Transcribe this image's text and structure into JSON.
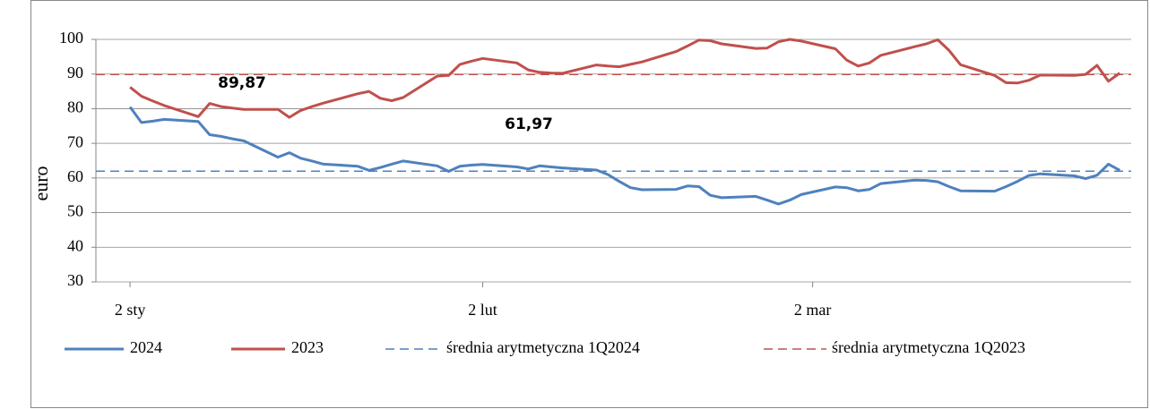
{
  "chart_data": {
    "type": "line",
    "y_label": "euro",
    "xlim": [
      -3,
      88
    ],
    "xticks": [
      {
        "value": 0,
        "label": "2 sty"
      },
      {
        "value": 31,
        "label": "2 lut"
      },
      {
        "value": 60,
        "label": "2 mar"
      }
    ],
    "ylim": [
      30,
      100
    ],
    "yticks": [
      30,
      40,
      50,
      60,
      70,
      80,
      90,
      100
    ],
    "grid": true,
    "legend": "bottom",
    "x": [
      0,
      1,
      2,
      3,
      6,
      7,
      8,
      9,
      10,
      13,
      14,
      15,
      16,
      17,
      20,
      21,
      22,
      23,
      24,
      27,
      28,
      29,
      30,
      31,
      34,
      35,
      36,
      37,
      38,
      41,
      42,
      43,
      44,
      45,
      48,
      49,
      50,
      51,
      52,
      55,
      56,
      57,
      58,
      59,
      62,
      63,
      64,
      65,
      66,
      69,
      70,
      71,
      72,
      73,
      76,
      77,
      78,
      79,
      80,
      83,
      84,
      85,
      86,
      87
    ],
    "series": [
      {
        "name": "2024",
        "color": "#4f81bd",
        "values": [
          80.5,
          76,
          76.4,
          76.9,
          76.3,
          72.5,
          72,
          71.3,
          70.7,
          66,
          67.3,
          65.7,
          64.9,
          64,
          63.4,
          62.2,
          63,
          64,
          64.9,
          63.5,
          61.9,
          63.4,
          63.7,
          63.9,
          63.2,
          62.6,
          63.5,
          63.2,
          62.9,
          62.3,
          61,
          59,
          57.2,
          56.6,
          56.7,
          57.7,
          57.5,
          55,
          54.3,
          54.7,
          53.6,
          52.5,
          53.6,
          55.2,
          57.4,
          57.2,
          56.3,
          56.7,
          58.4,
          59.4,
          59.3,
          58.9,
          57.5,
          56.3,
          56.2,
          57.5,
          59,
          60.7,
          61.2,
          60.6,
          59.8,
          60.8,
          64,
          62.2
        ]
      },
      {
        "name": "2023",
        "color": "#c0504d",
        "values": [
          86.2,
          83.6,
          82.2,
          80.9,
          77.7,
          81.5,
          80.6,
          80.2,
          79.8,
          79.8,
          77.5,
          79.5,
          80.6,
          81.6,
          84.3,
          85,
          83,
          82.3,
          83.2,
          89.4,
          89.6,
          92.8,
          93.7,
          94.5,
          93.2,
          91.2,
          90.5,
          90.3,
          90.2,
          92.6,
          92.3,
          92.1,
          92.8,
          93.5,
          96.5,
          98.1,
          99.8,
          99.6,
          98.7,
          97.4,
          97.5,
          99.3,
          100,
          99.5,
          97.3,
          94,
          92.3,
          93.2,
          95.4,
          97.9,
          98.7,
          99.9,
          96.8,
          92.7,
          89.6,
          87.5,
          87.4,
          88.2,
          89.7,
          89.6,
          89.9,
          92.5,
          87.9,
          90.3
        ]
      }
    ],
    "reference_lines": [
      {
        "name": "średnia arytmetyczna 1Q2024",
        "color": "#4f81bd",
        "value": 61.97,
        "label": "61,97"
      },
      {
        "name": "średnia arytmetyczna 1Q2023",
        "color": "#c0504d",
        "value": 89.87,
        "label": "89,87"
      }
    ]
  }
}
